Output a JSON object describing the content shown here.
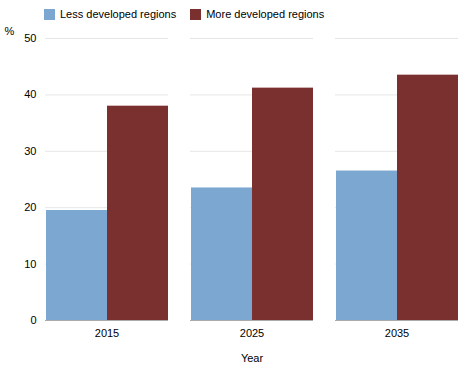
{
  "chart_data": {
    "type": "bar",
    "categories": [
      "2015",
      "2025",
      "2035"
    ],
    "series": [
      {
        "name": "Less developed regions",
        "color": "#7BA7D0",
        "values": [
          19.5,
          23.5,
          26.5
        ]
      },
      {
        "name": "More developed regions",
        "color": "#7B3030",
        "values": [
          38.0,
          41.2,
          43.5
        ]
      }
    ],
    "xlabel": "Year",
    "ylabel": "%",
    "ylim": [
      0,
      50
    ],
    "yticks": [
      0,
      10,
      20,
      30,
      40,
      50
    ],
    "grid": true,
    "legend": "upper-left"
  }
}
